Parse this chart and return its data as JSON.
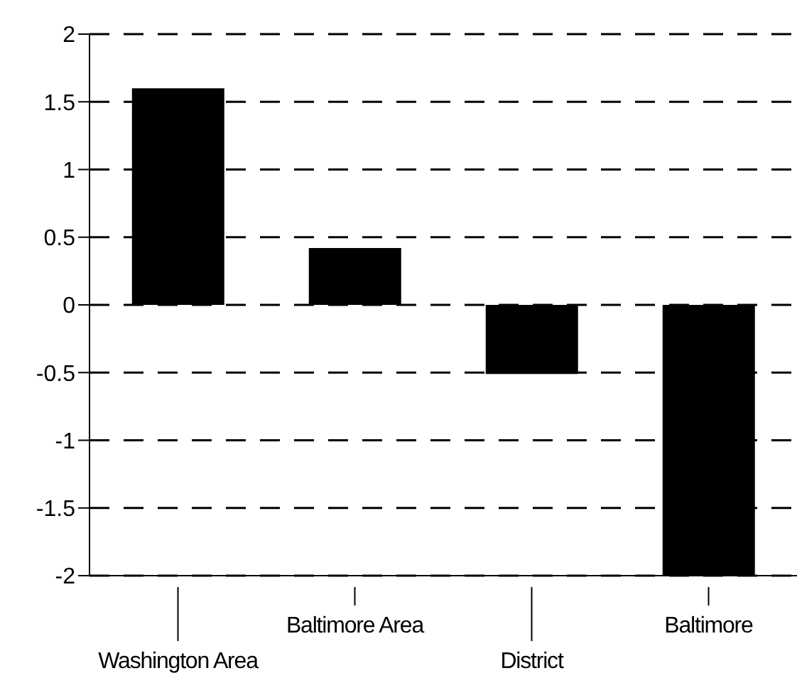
{
  "chart_data": {
    "type": "bar",
    "categories": [
      "Washington Area",
      "Baltimore Area",
      "District",
      "Baltimore"
    ],
    "values": [
      1.6,
      0.42,
      -0.51,
      -2.0
    ],
    "color": "#000000",
    "ylim": [
      -2,
      2
    ],
    "yticks": [
      -2,
      -1.5,
      -1,
      -0.5,
      0,
      0.5,
      1,
      1.5,
      2
    ],
    "grid": "y",
    "legend": false
  }
}
